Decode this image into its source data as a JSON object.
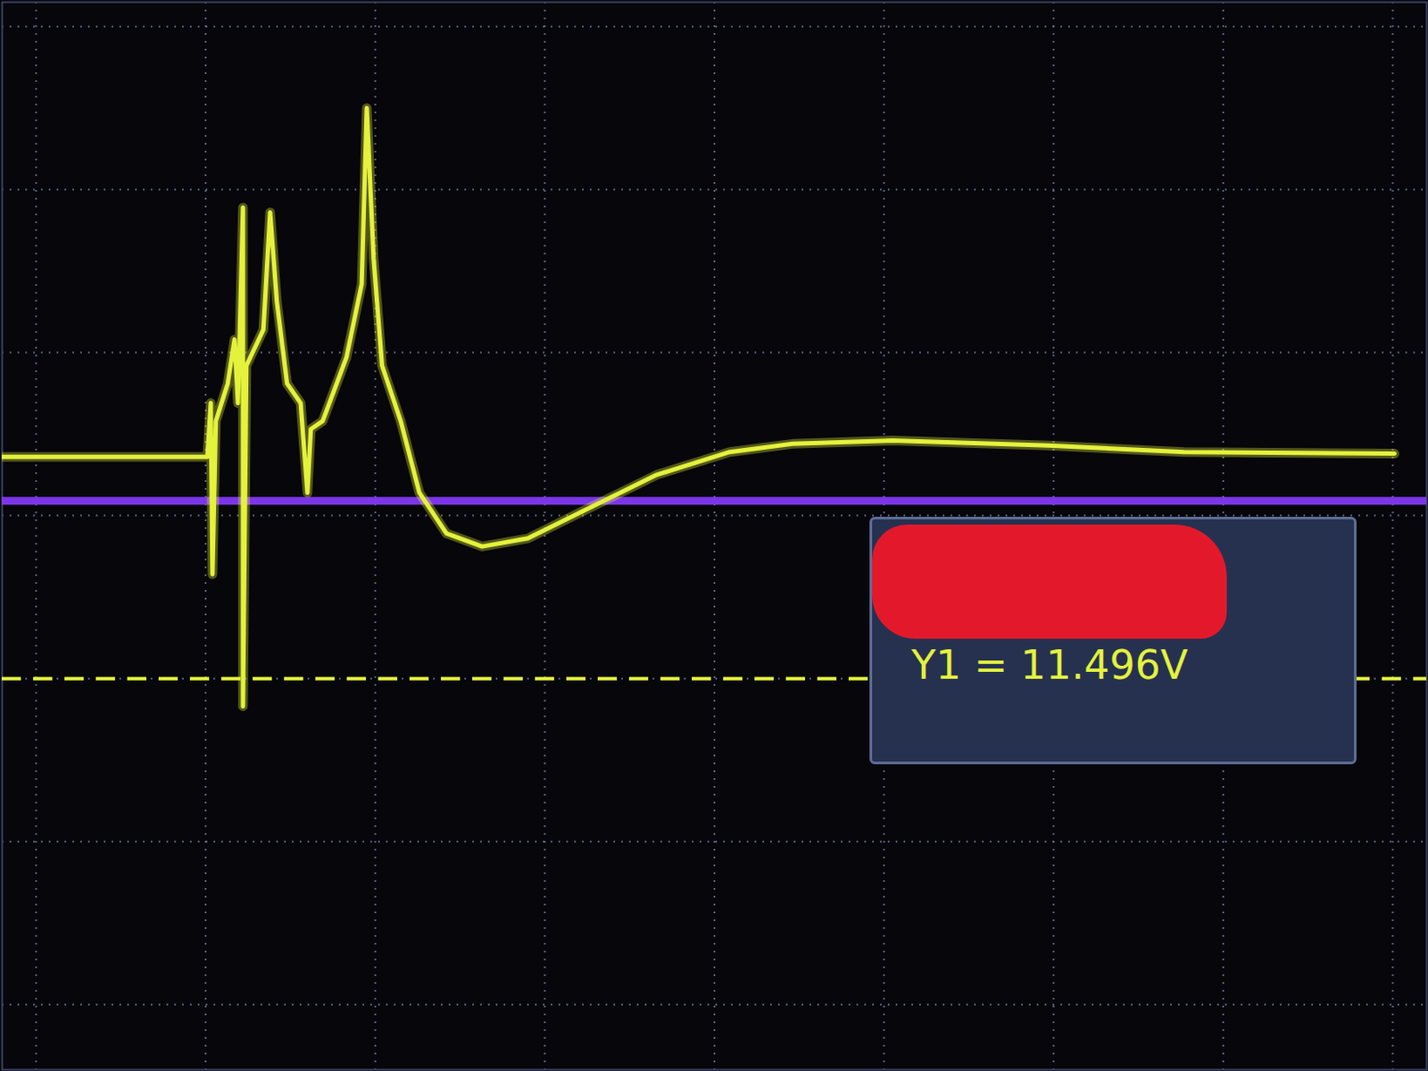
{
  "chart_data": {
    "type": "line",
    "x": [
      -0.2,
      1.01,
      1.03,
      1.04,
      1.06,
      1.13,
      1.17,
      1.19,
      1.22,
      1.22,
      1.24,
      1.29,
      1.34,
      1.38,
      1.42,
      1.48,
      1.56,
      1.6,
      1.62,
      1.69,
      1.83,
      1.92,
      1.95,
      1.99,
      2.04,
      2.15,
      2.26,
      2.42,
      2.63,
      2.9,
      3.23,
      3.66,
      4.09,
      4.46,
      5.05,
      5.97,
      6.77,
      8.01
    ],
    "values": [
      0.36,
      0.36,
      0.69,
      -0.36,
      0.58,
      0.81,
      1.08,
      0.69,
      1.89,
      -1.17,
      0.92,
      1.03,
      1.14,
      1.86,
      1.31,
      0.81,
      0.69,
      0.14,
      0.53,
      0.58,
      0.97,
      1.42,
      2.5,
      1.58,
      0.92,
      0.58,
      0.14,
      -0.11,
      -0.19,
      -0.14,
      0.03,
      0.25,
      0.39,
      0.44,
      0.46,
      0.43,
      0.39,
      0.38
    ],
    "color": "#e4f23c",
    "reference_lines": [
      {
        "y": 0.09,
        "color": "#8a3cff",
        "line_style": "solid"
      }
    ],
    "annotations": [
      {
        "text": "Y1 = 11.496V",
        "y": -1.0,
        "color": "#e4f23c",
        "line_style": "dashed"
      }
    ],
    "xlim": [
      -0.2,
      8.2
    ],
    "ylim": [
      -3.4,
      3.15
    ],
    "xticks": [
      0,
      1,
      2,
      3,
      4,
      5,
      6,
      7,
      8
    ],
    "yticks": [
      -3,
      -2,
      -1,
      0,
      1,
      2,
      3
    ],
    "grid": true,
    "tick_labels": false
  }
}
